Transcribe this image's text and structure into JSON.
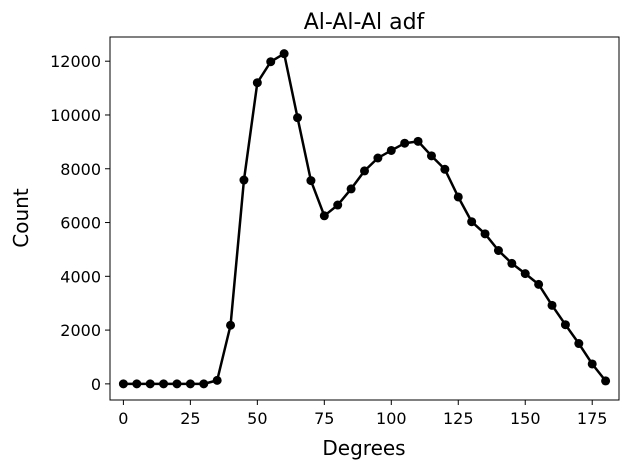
{
  "chart_data": {
    "type": "line",
    "title": "Al-Al-Al adf",
    "xlabel": "Degrees",
    "ylabel": "Count",
    "xlim": [
      -5,
      185
    ],
    "ylim": [
      -600,
      12900
    ],
    "xticks": [
      0,
      25,
      50,
      75,
      100,
      125,
      150,
      175
    ],
    "yticks": [
      0,
      2000,
      4000,
      6000,
      8000,
      10000,
      12000
    ],
    "grid": false,
    "legend": "none",
    "series": [
      {
        "color": "#000000",
        "marker": "circle",
        "x": [
          0,
          5,
          10,
          15,
          20,
          25,
          30,
          35,
          40,
          45,
          50,
          55,
          60,
          65,
          70,
          75,
          80,
          85,
          90,
          95,
          100,
          105,
          110,
          115,
          120,
          125,
          130,
          135,
          140,
          145,
          150,
          155,
          160,
          165,
          170,
          175,
          180
        ],
        "y": [
          0,
          0,
          0,
          0,
          0,
          0,
          0,
          130,
          2180,
          7580,
          11200,
          11980,
          12280,
          9900,
          7560,
          6250,
          6650,
          7250,
          7920,
          8400,
          8680,
          8950,
          9020,
          8480,
          7980,
          6950,
          6030,
          5580,
          4960,
          4480,
          4100,
          3700,
          2920,
          2200,
          1500,
          740,
          110
        ]
      }
    ]
  }
}
